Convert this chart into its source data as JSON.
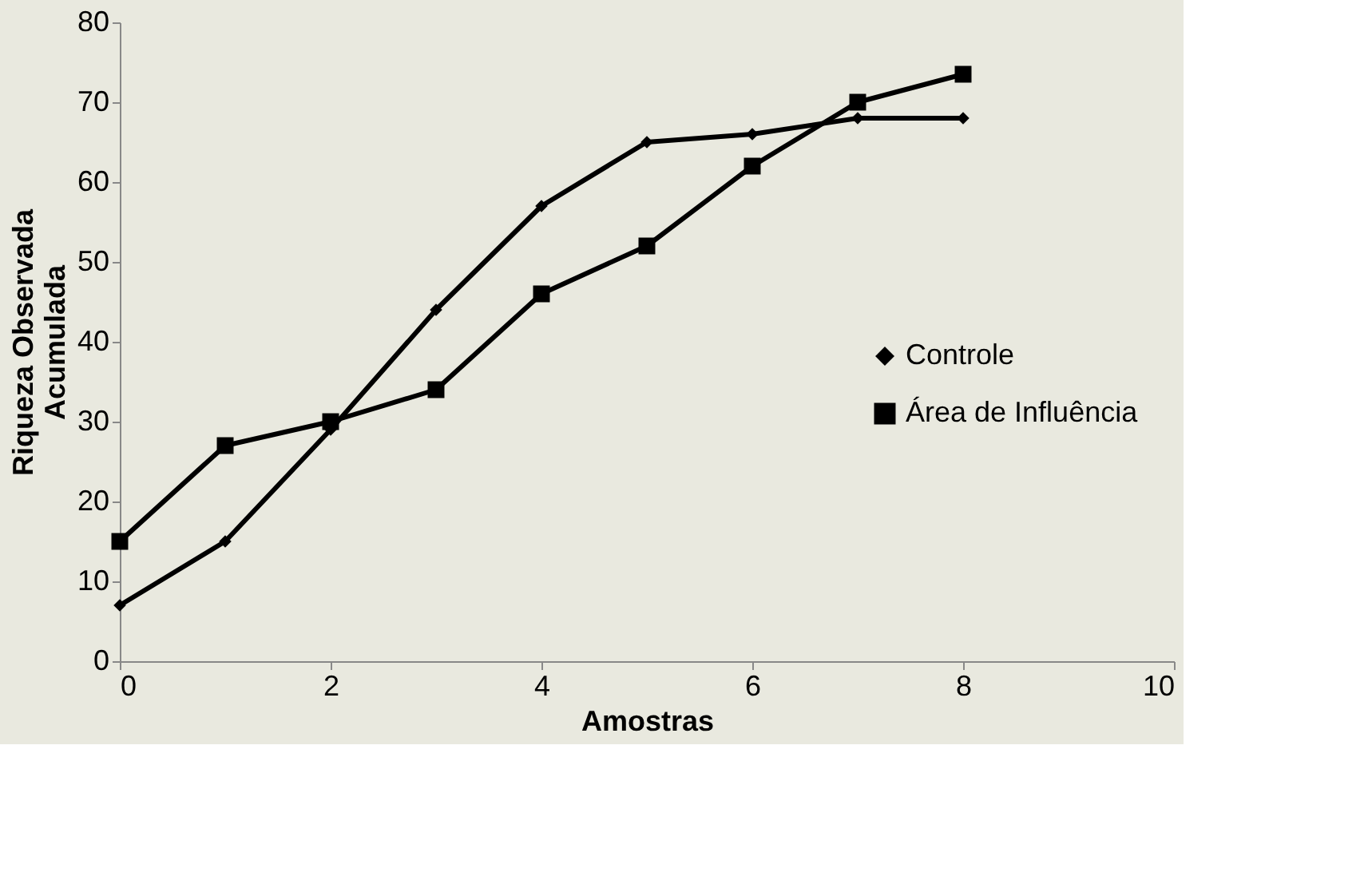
{
  "chart_data": {
    "type": "line",
    "xlabel": "Amostras",
    "ylabel": "Riqueza Observada\nAcumulada",
    "x": [
      0,
      1,
      2,
      3,
      4,
      5,
      6,
      7,
      8
    ],
    "series": [
      {
        "name": "Controle",
        "color": "#000000",
        "marker": "diamond",
        "values": [
          7,
          15,
          29,
          44,
          57,
          65,
          66,
          68,
          68
        ]
      },
      {
        "name": "Área de Influência",
        "color": "#000000",
        "marker": "square",
        "values": [
          15,
          27,
          30,
          34,
          46,
          52,
          62,
          70,
          73.5
        ]
      }
    ],
    "xlim": [
      0,
      10
    ],
    "xticks": [
      0,
      2,
      4,
      6,
      8,
      10
    ],
    "ylim": [
      0,
      80
    ],
    "yticks": [
      0,
      10,
      20,
      30,
      40,
      50,
      60,
      70,
      80
    ],
    "grid": false,
    "legend": "right",
    "line_style": "solid"
  }
}
